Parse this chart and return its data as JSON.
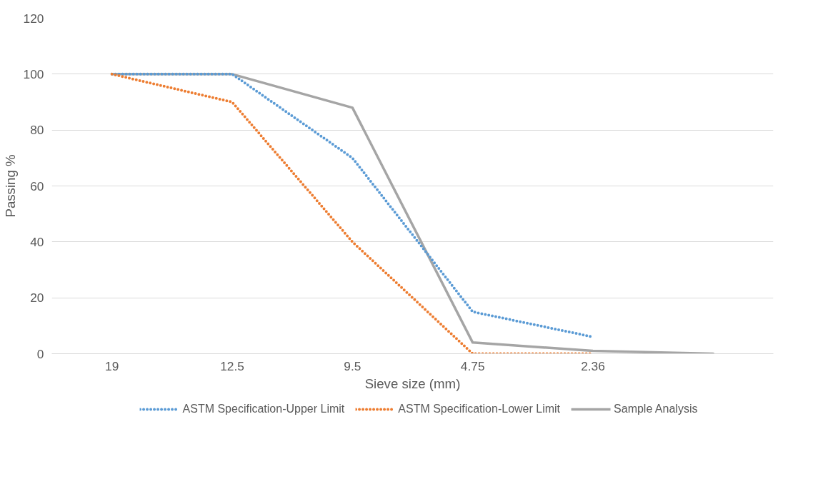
{
  "chart_data": {
    "type": "line",
    "xlabel": "Sieve size (mm)",
    "ylabel": "Passing %",
    "categories": [
      "19",
      "12.5",
      "9.5",
      "4.75",
      "2.36",
      null
    ],
    "series": [
      {
        "name": "ASTM Specification-Upper Limit",
        "color": "#5b9bd5",
        "line_style": "dotted",
        "values": [
          100,
          100,
          70,
          15,
          6,
          null
        ]
      },
      {
        "name": "ASTM Specification-Lower Limit",
        "color": "#ed7d31",
        "line_style": "dotted",
        "values": [
          100,
          90,
          40,
          0,
          0,
          null
        ]
      },
      {
        "name": "Sample Analysis",
        "color": "#a5a5a5",
        "line_style": "solid",
        "values": [
          100,
          100,
          88,
          4,
          1,
          0
        ]
      }
    ],
    "ylim": [
      0,
      120
    ],
    "yticks": [
      0,
      20,
      40,
      60,
      80,
      100,
      120
    ],
    "grid": "y",
    "legend": "bottom",
    "marker": "none"
  }
}
